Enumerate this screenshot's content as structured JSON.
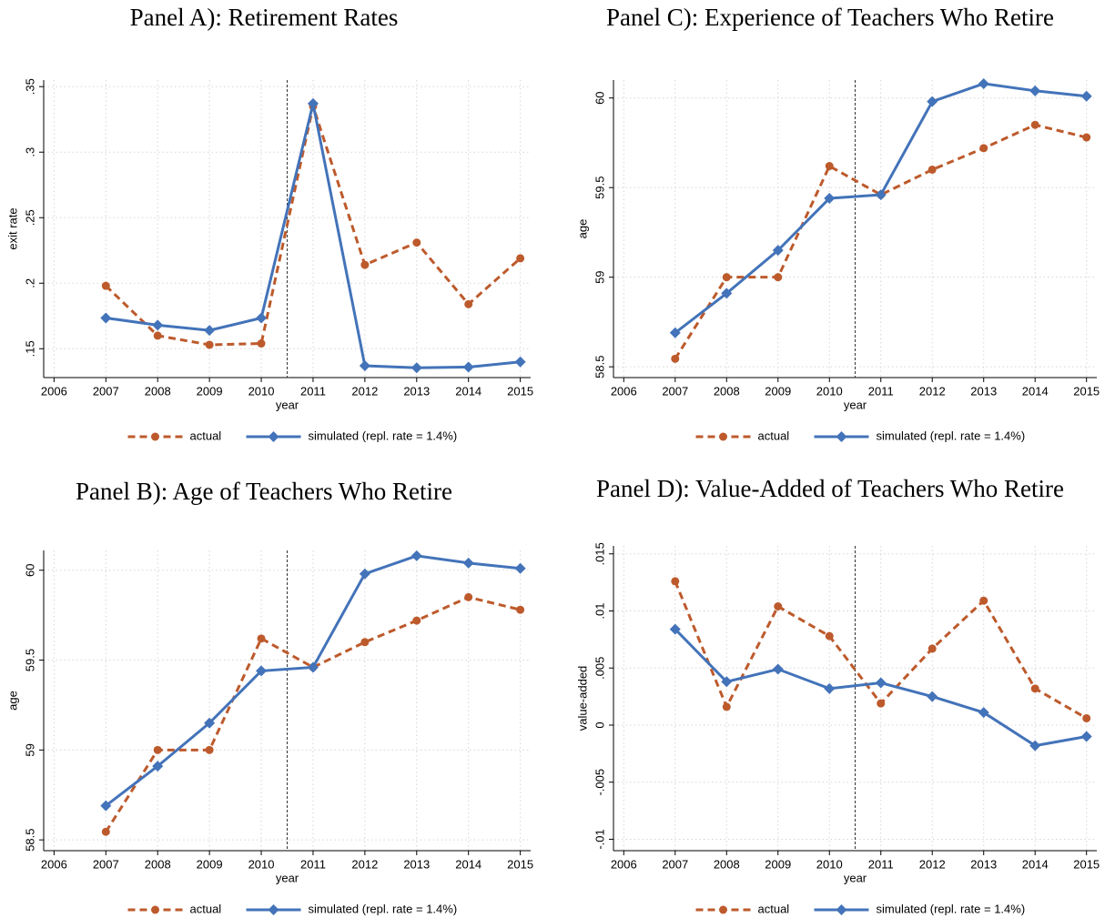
{
  "chart_data": [
    {
      "type": "line",
      "title": "Panel A): Retirement Rates",
      "x_label": "year",
      "y_label": "exit rate",
      "x": [
        2007,
        2008,
        2009,
        2010,
        2011,
        2012,
        2013,
        2014,
        2015
      ],
      "series": [
        {
          "name": "actual",
          "color": "#bd5a2c",
          "style": "dashed",
          "marker": "circle",
          "values": [
            0.198,
            0.16,
            0.153,
            0.154,
            0.335,
            0.214,
            0.231,
            0.184,
            0.219
          ]
        },
        {
          "name": "simulated (repl. rate = 1.4%)",
          "color": "#4373b9",
          "style": "solid",
          "marker": "diamond",
          "values": [
            0.1735,
            0.168,
            0.164,
            0.1735,
            0.337,
            0.137,
            0.1355,
            0.136,
            0.14
          ]
        }
      ],
      "xlim": [
        2005.8,
        2015.2
      ],
      "ylim": [
        0.128,
        0.355
      ],
      "xticks": [
        2006,
        2007,
        2008,
        2009,
        2010,
        2011,
        2012,
        2013,
        2014,
        2015
      ],
      "yticks": [
        {
          "value": 0.15,
          "label": ".15"
        },
        {
          "value": 0.2,
          "label": ".2"
        },
        {
          "value": 0.25,
          "label": ".25"
        },
        {
          "value": 0.3,
          "label": ".3"
        },
        {
          "value": 0.35,
          "label": ".35"
        }
      ],
      "vline": 2010.5,
      "grid": true
    },
    {
      "type": "line",
      "title": "Panel C): Experience of Teachers Who Retire",
      "x_label": "year",
      "y_label": "age",
      "x": [
        2007,
        2008,
        2009,
        2010,
        2011,
        2012,
        2013,
        2014,
        2015
      ],
      "series": [
        {
          "name": "actual",
          "color": "#bd5a2c",
          "style": "dashed",
          "marker": "circle",
          "values": [
            58.545,
            59.0,
            59.0,
            59.62,
            59.46,
            59.6,
            59.72,
            59.85,
            59.78
          ]
        },
        {
          "name": "simulated (repl. rate = 1.4%)",
          "color": "#4373b9",
          "style": "solid",
          "marker": "diamond",
          "values": [
            58.69,
            58.91,
            59.15,
            59.44,
            59.46,
            59.98,
            60.08,
            60.04,
            60.01
          ]
        }
      ],
      "xlim": [
        2005.8,
        2015.2
      ],
      "ylim": [
        58.44,
        60.1
      ],
      "xticks": [
        2006,
        2007,
        2008,
        2009,
        2010,
        2011,
        2012,
        2013,
        2014,
        2015
      ],
      "yticks": [
        58.5,
        59,
        59.5,
        60
      ],
      "vline": 2010.5,
      "grid": true
    },
    {
      "type": "line",
      "title": "Panel B): Age of Teachers Who Retire",
      "x_label": "year",
      "y_label": "age",
      "x": [
        2007,
        2008,
        2009,
        2010,
        2011,
        2012,
        2013,
        2014,
        2015
      ],
      "series": [
        {
          "name": "actual",
          "color": "#bd5a2c",
          "style": "dashed",
          "marker": "circle",
          "values": [
            58.545,
            59.0,
            59.0,
            59.62,
            59.46,
            59.6,
            59.72,
            59.85,
            59.78
          ]
        },
        {
          "name": "simulated (repl. rate = 1.4%)",
          "color": "#4373b9",
          "style": "solid",
          "marker": "diamond",
          "values": [
            58.69,
            58.91,
            59.15,
            59.44,
            59.46,
            59.98,
            60.08,
            60.04,
            60.01
          ]
        }
      ],
      "xlim": [
        2005.8,
        2015.2
      ],
      "ylim": [
        58.44,
        60.11
      ],
      "xticks": [
        2006,
        2007,
        2008,
        2009,
        2010,
        2011,
        2012,
        2013,
        2014,
        2015
      ],
      "yticks": [
        58.5,
        59,
        59.5,
        60
      ],
      "vline": 2010.5,
      "grid": true
    },
    {
      "type": "line",
      "title": "Panel D): Value-Added of Teachers Who Retire",
      "x_label": "year",
      "y_label": "value-added",
      "x": [
        2007,
        2008,
        2009,
        2010,
        2011,
        2012,
        2013,
        2014,
        2015
      ],
      "series": [
        {
          "name": "actual",
          "color": "#bd5a2c",
          "style": "dashed",
          "marker": "circle",
          "values": [
            0.0126,
            0.0016,
            0.0104,
            0.0078,
            0.0019,
            0.0067,
            0.0109,
            0.0032,
            0.0006
          ]
        },
        {
          "name": "simulated (repl. rate = 1.4%)",
          "color": "#4373b9",
          "style": "solid",
          "marker": "diamond",
          "values": [
            0.0084,
            0.0038,
            0.0049,
            0.0032,
            0.0037,
            0.0025,
            0.0011,
            -0.0018,
            -0.001
          ]
        }
      ],
      "xlim": [
        2005.8,
        2015.2
      ],
      "ylim": [
        -0.011,
        0.0157
      ],
      "xticks": [
        2006,
        2007,
        2008,
        2009,
        2010,
        2011,
        2012,
        2013,
        2014,
        2015
      ],
      "yticks": [
        {
          "value": -0.01,
          "label": "-.01"
        },
        {
          "value": -0.005,
          "label": "-.005"
        },
        0,
        {
          "value": 0.005,
          "label": ".005"
        },
        {
          "value": 0.01,
          "label": ".01"
        },
        {
          "value": 0.015,
          "label": ".015"
        }
      ],
      "vline": 2010.5,
      "grid": true
    }
  ]
}
